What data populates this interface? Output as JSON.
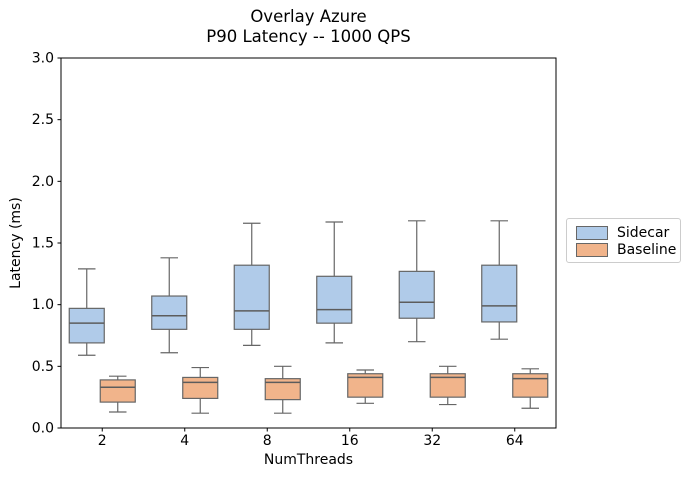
{
  "chart_data": {
    "type": "boxplot",
    "title_line1": "Overlay Azure",
    "title_line2": "P90 Latency -- 1000 QPS",
    "xlabel": "NumThreads",
    "ylabel": "Latency (ms)",
    "ylim": [
      0.0,
      3.0
    ],
    "ytick_labels": [
      "0.0",
      "0.5",
      "1.0",
      "1.5",
      "2.0",
      "2.5",
      "3.0"
    ],
    "categories": [
      "2",
      "4",
      "8",
      "16",
      "32",
      "64"
    ],
    "grid": false,
    "legend_position": "outside-center-right",
    "colors": {
      "spine": "#000000",
      "box_edge": "#666666",
      "median": "#5c5c5c",
      "sidecar_fill": "#b0cbe9",
      "baseline_fill": "#f1b48b",
      "legend_border": "#cccccc"
    },
    "series": [
      {
        "name": "Sidecar",
        "fill": "#b0cbe9",
        "boxes": [
          {
            "whislo": 0.59,
            "q1": 0.69,
            "med": 0.85,
            "q3": 0.97,
            "whishi": 1.29
          },
          {
            "whislo": 0.61,
            "q1": 0.8,
            "med": 0.91,
            "q3": 1.07,
            "whishi": 1.38
          },
          {
            "whislo": 0.67,
            "q1": 0.8,
            "med": 0.95,
            "q3": 1.32,
            "whishi": 1.66
          },
          {
            "whislo": 0.69,
            "q1": 0.85,
            "med": 0.96,
            "q3": 1.23,
            "whishi": 1.67
          },
          {
            "whislo": 0.7,
            "q1": 0.89,
            "med": 1.02,
            "q3": 1.27,
            "whishi": 1.68
          },
          {
            "whislo": 0.72,
            "q1": 0.86,
            "med": 0.99,
            "q3": 1.32,
            "whishi": 1.68
          }
        ]
      },
      {
        "name": "Baseline",
        "fill": "#f1b48b",
        "boxes": [
          {
            "whislo": 0.13,
            "q1": 0.21,
            "med": 0.33,
            "q3": 0.39,
            "whishi": 0.42
          },
          {
            "whislo": 0.12,
            "q1": 0.24,
            "med": 0.37,
            "q3": 0.41,
            "whishi": 0.49
          },
          {
            "whislo": 0.12,
            "q1": 0.23,
            "med": 0.37,
            "q3": 0.4,
            "whishi": 0.5
          },
          {
            "whislo": 0.2,
            "q1": 0.25,
            "med": 0.41,
            "q3": 0.44,
            "whishi": 0.47
          },
          {
            "whislo": 0.19,
            "q1": 0.25,
            "med": 0.41,
            "q3": 0.44,
            "whishi": 0.5
          },
          {
            "whislo": 0.16,
            "q1": 0.25,
            "med": 0.4,
            "q3": 0.44,
            "whishi": 0.48
          }
        ]
      }
    ]
  }
}
